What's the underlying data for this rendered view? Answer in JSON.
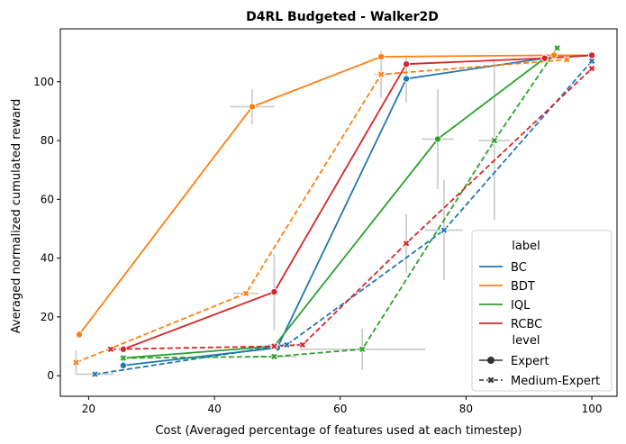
{
  "chart_data": {
    "type": "line",
    "title": "D4RL Budgeted - Walker2D",
    "xlabel": "Cost (Averaged percentage of features used at each timestep)",
    "ylabel": "Averaged normalized cumulated reward",
    "xlim": [
      15.5,
      104
    ],
    "ylim": [
      -7,
      118
    ],
    "xticks": [
      20,
      40,
      60,
      80,
      100
    ],
    "yticks": [
      0,
      20,
      40,
      60,
      80,
      100
    ],
    "grid": false,
    "legend": {
      "placement": "bottom-right",
      "label_header": "label",
      "level_header": "level",
      "labels": [
        "BC",
        "BDT",
        "IQL",
        "RCBC"
      ],
      "levels": [
        "Expert",
        "Medium-Expert"
      ]
    },
    "colors": {
      "BC": "#1f77b4",
      "BDT": "#ff7f0e",
      "IQL": "#2ca02c",
      "RCBC": "#d62728",
      "errorbar": "#c8c8c8"
    },
    "series": [
      {
        "name": "BC",
        "level": "Expert",
        "marker": "circle",
        "x": [
          25.5,
          50.0,
          70.5,
          92.5,
          100.0
        ],
        "y": [
          3.5,
          9.5,
          101.0,
          108.0,
          109.0
        ],
        "xerr": [
          0,
          0,
          0,
          0,
          0
        ],
        "yerr": [
          0,
          0,
          8,
          0,
          0
        ]
      },
      {
        "name": "BC",
        "level": "Medium-Expert",
        "marker": "x",
        "x": [
          21.0,
          51.5,
          76.5,
          100.0
        ],
        "y": [
          0.5,
          10.5,
          49.5,
          107.0
        ],
        "xerr": [
          3,
          3,
          3,
          0
        ],
        "yerr": [
          0,
          0,
          17,
          0
        ]
      },
      {
        "name": "BDT",
        "level": "Expert",
        "marker": "circle",
        "x": [
          18.5,
          46.0,
          66.5,
          94.0,
          100.0
        ],
        "y": [
          14.0,
          91.5,
          108.5,
          109.0,
          109.0
        ],
        "xerr": [
          0,
          3.5,
          0,
          0,
          0
        ],
        "yerr": [
          0,
          6,
          0,
          0,
          0
        ]
      },
      {
        "name": "BDT",
        "level": "Medium-Expert",
        "marker": "x",
        "x": [
          18.0,
          45.0,
          66.5,
          96.0
        ],
        "y": [
          4.5,
          28.0,
          102.5,
          107.5
        ],
        "xerr": [
          0,
          2,
          1,
          0
        ],
        "yerr": [
          4,
          0,
          8,
          0
        ]
      },
      {
        "name": "IQL",
        "level": "Expert",
        "marker": "circle",
        "x": [
          25.5,
          49.5,
          75.5,
          92.5,
          100.0
        ],
        "y": [
          6.0,
          10.0,
          80.5,
          108.0,
          109.0
        ],
        "xerr": [
          0,
          0,
          2.5,
          0,
          0
        ],
        "yerr": [
          0,
          0,
          17,
          0,
          0
        ]
      },
      {
        "name": "IQL",
        "level": "Medium-Expert",
        "marker": "x",
        "x": [
          25.5,
          49.5,
          63.5,
          84.5,
          94.5
        ],
        "y": [
          6.0,
          6.5,
          9.0,
          80.0,
          111.5
        ],
        "xerr": [
          0,
          3.5,
          10,
          2.5,
          0
        ],
        "yerr": [
          0,
          0,
          7,
          27,
          0
        ]
      },
      {
        "name": "RCBC",
        "level": "Expert",
        "marker": "circle",
        "x": [
          25.5,
          49.5,
          70.5,
          92.5,
          100.0
        ],
        "y": [
          9.0,
          28.5,
          106.0,
          108.0,
          109.0
        ],
        "xerr": [
          0,
          0,
          0,
          0,
          0
        ],
        "yerr": [
          0,
          13,
          0,
          0,
          0
        ]
      },
      {
        "name": "RCBC",
        "level": "Medium-Expert",
        "marker": "x",
        "x": [
          23.5,
          49.5,
          54.0,
          70.5,
          100.0
        ],
        "y": [
          9.0,
          10.0,
          10.5,
          45.0,
          104.5
        ],
        "xerr": [
          0,
          0,
          0,
          0,
          0
        ],
        "yerr": [
          0,
          0,
          0,
          10,
          0
        ]
      }
    ]
  }
}
